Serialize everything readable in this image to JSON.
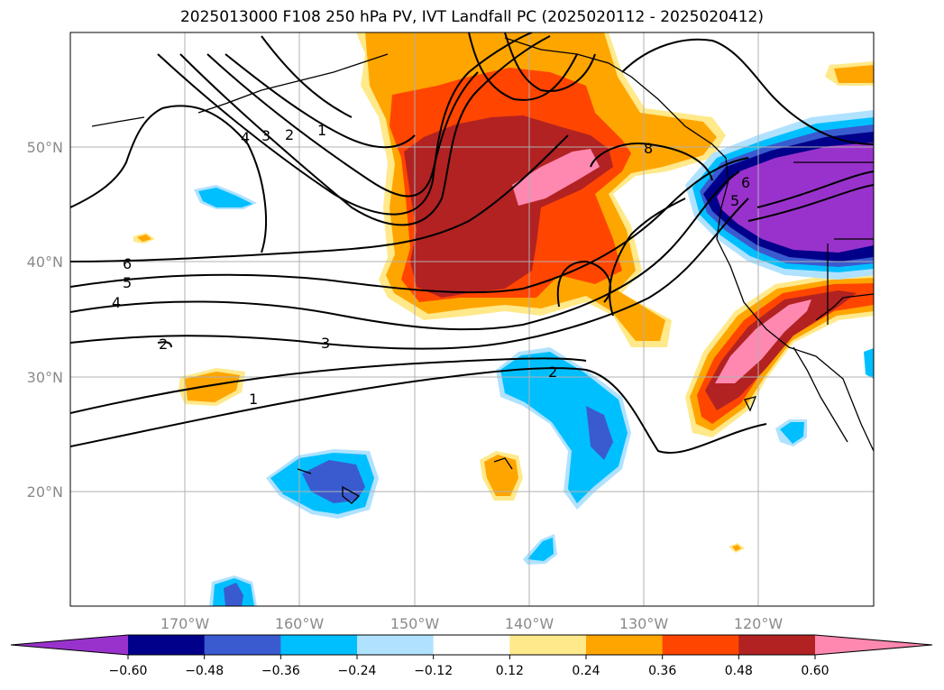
{
  "title": "2025013000 F108 250 hPa PV, IVT Landfall PC (2025020112 - 2025020412)",
  "lon_ticks": [
    "170°W",
    "160°W",
    "150°W",
    "140°W",
    "130°W",
    "120°W"
  ],
  "lat_ticks": [
    "50°N",
    "40°N",
    "30°N",
    "20°N"
  ],
  "colorbar": {
    "labels": [
      "−0.60",
      "−0.48",
      "−0.36",
      "−0.24",
      "−0.12",
      "0.12",
      "0.24",
      "0.36",
      "0.48",
      "0.60"
    ],
    "colors": [
      "#9932cc",
      "#00008b",
      "#3a5bd0",
      "#00bfff",
      "#b0e2ff",
      "#ffffff",
      "#ffe98a",
      "#ffa500",
      "#ff4500",
      "#b22222",
      "#ff88b0"
    ]
  },
  "pv_contour_labels": [
    "1",
    "2",
    "3",
    "4",
    "5",
    "6",
    "8",
    "2",
    "3",
    "4",
    "1",
    "2",
    "5",
    "6"
  ],
  "colors": {
    "neg_light": "#b0e2ff",
    "neg_1": "#00bfff",
    "neg_2": "#3a5bd0",
    "neg_3": "#00008b",
    "neg_4": "#9932cc",
    "pos_1": "#ffe98a",
    "pos_2": "#ffa500",
    "pos_3": "#ff4500",
    "pos_4": "#b22222",
    "pos_5": "#ff88b0"
  }
}
